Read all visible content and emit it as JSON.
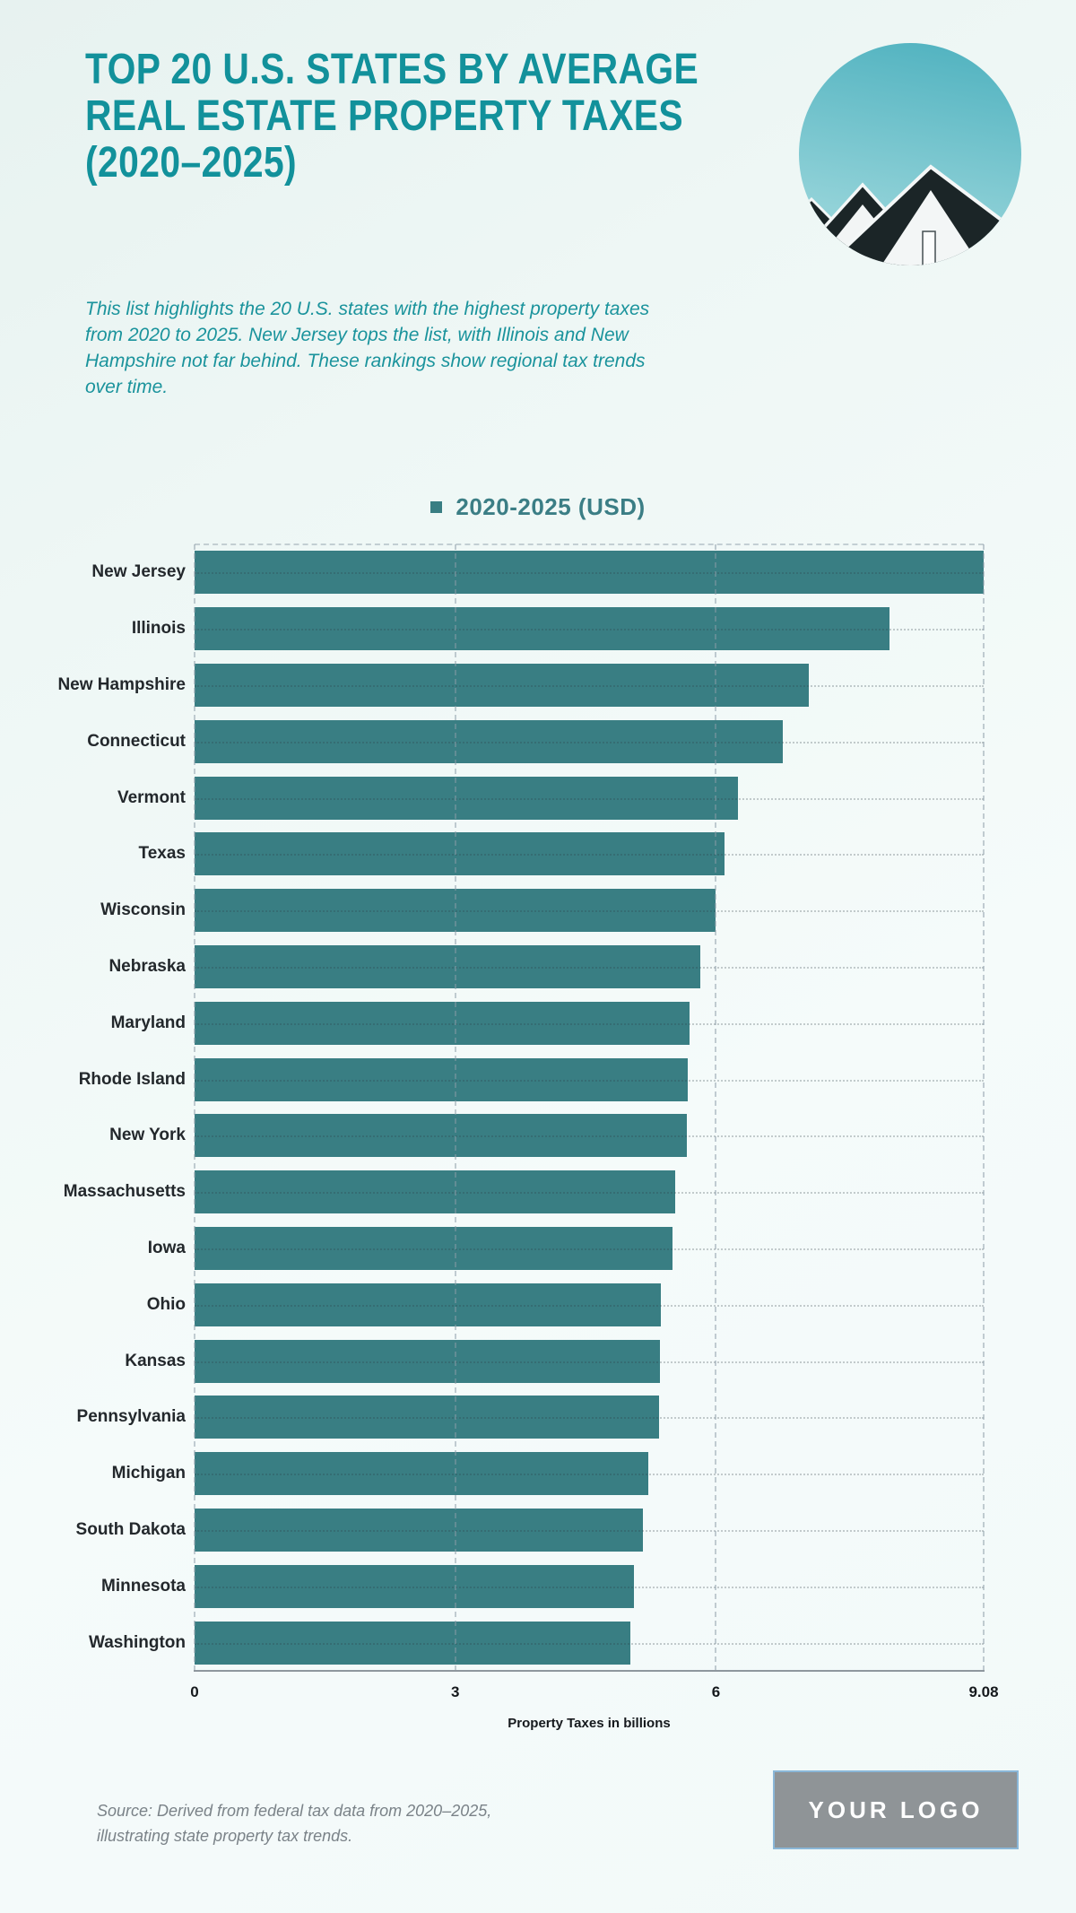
{
  "page": {
    "title_lines": [
      "TOP 20 U.S. STATES BY AVERAGE",
      "REAL ESTATE PROPERTY TAXES",
      "(2020–2025)"
    ],
    "intro": "This list highlights the 20 U.S. states with the highest property taxes from 2020 to 2025. New Jersey tops the list, with Illinois and New Hampshire not far behind. These rankings show regional tax trends over time.",
    "source_lines": [
      "Source: Derived from federal tax data from 2020–2025,",
      "illustrating state property tax trends."
    ],
    "logo_text": "YOUR LOGO",
    "hero_image": "circular-photo-of-gabled-rooftops-against-teal-sky"
  },
  "colors": {
    "title": "#12919b",
    "intro": "#1a939c",
    "bar": "#397e83",
    "legend_text": "#3b7e85",
    "state_label": "#23282c",
    "axis_line": "#8e979e",
    "tick_text": "#15191d",
    "source_text": "#7a8288",
    "logo_bg": "#8f9497",
    "logo_border": "#8ab7d8",
    "sky_top": "#54b4c1",
    "sky_bottom": "#a2dade",
    "roof": "#1b2527",
    "background": "#eef7f5"
  },
  "chart_data": {
    "type": "bar",
    "orientation": "horizontal",
    "legend": "2020-2025 (USD)",
    "legend_position": "top-center",
    "grid": "dashed",
    "xlabel": "Property Taxes in billions",
    "xlim": [
      0,
      9.08
    ],
    "x_ticks": [
      0,
      3,
      6,
      9.08
    ],
    "x_tick_labels": [
      "0",
      "3",
      "6",
      "9.08"
    ],
    "categories": [
      "New Jersey",
      "Illinois",
      "New Hampshire",
      "Connecticut",
      "Vermont",
      "Texas",
      "Wisconsin",
      "Nebraska",
      "Maryland",
      "Rhode Island",
      "New York",
      "Massachusetts",
      "Iowa",
      "Ohio",
      "Kansas",
      "Pennsylvania",
      "Michigan",
      "South Dakota",
      "Minnesota",
      "Washington"
    ],
    "values": [
      9.08,
      8.0,
      7.07,
      6.77,
      6.25,
      6.1,
      6.0,
      5.82,
      5.7,
      5.68,
      5.66,
      5.53,
      5.5,
      5.37,
      5.35,
      5.34,
      5.22,
      5.16,
      5.06,
      5.01
    ]
  }
}
